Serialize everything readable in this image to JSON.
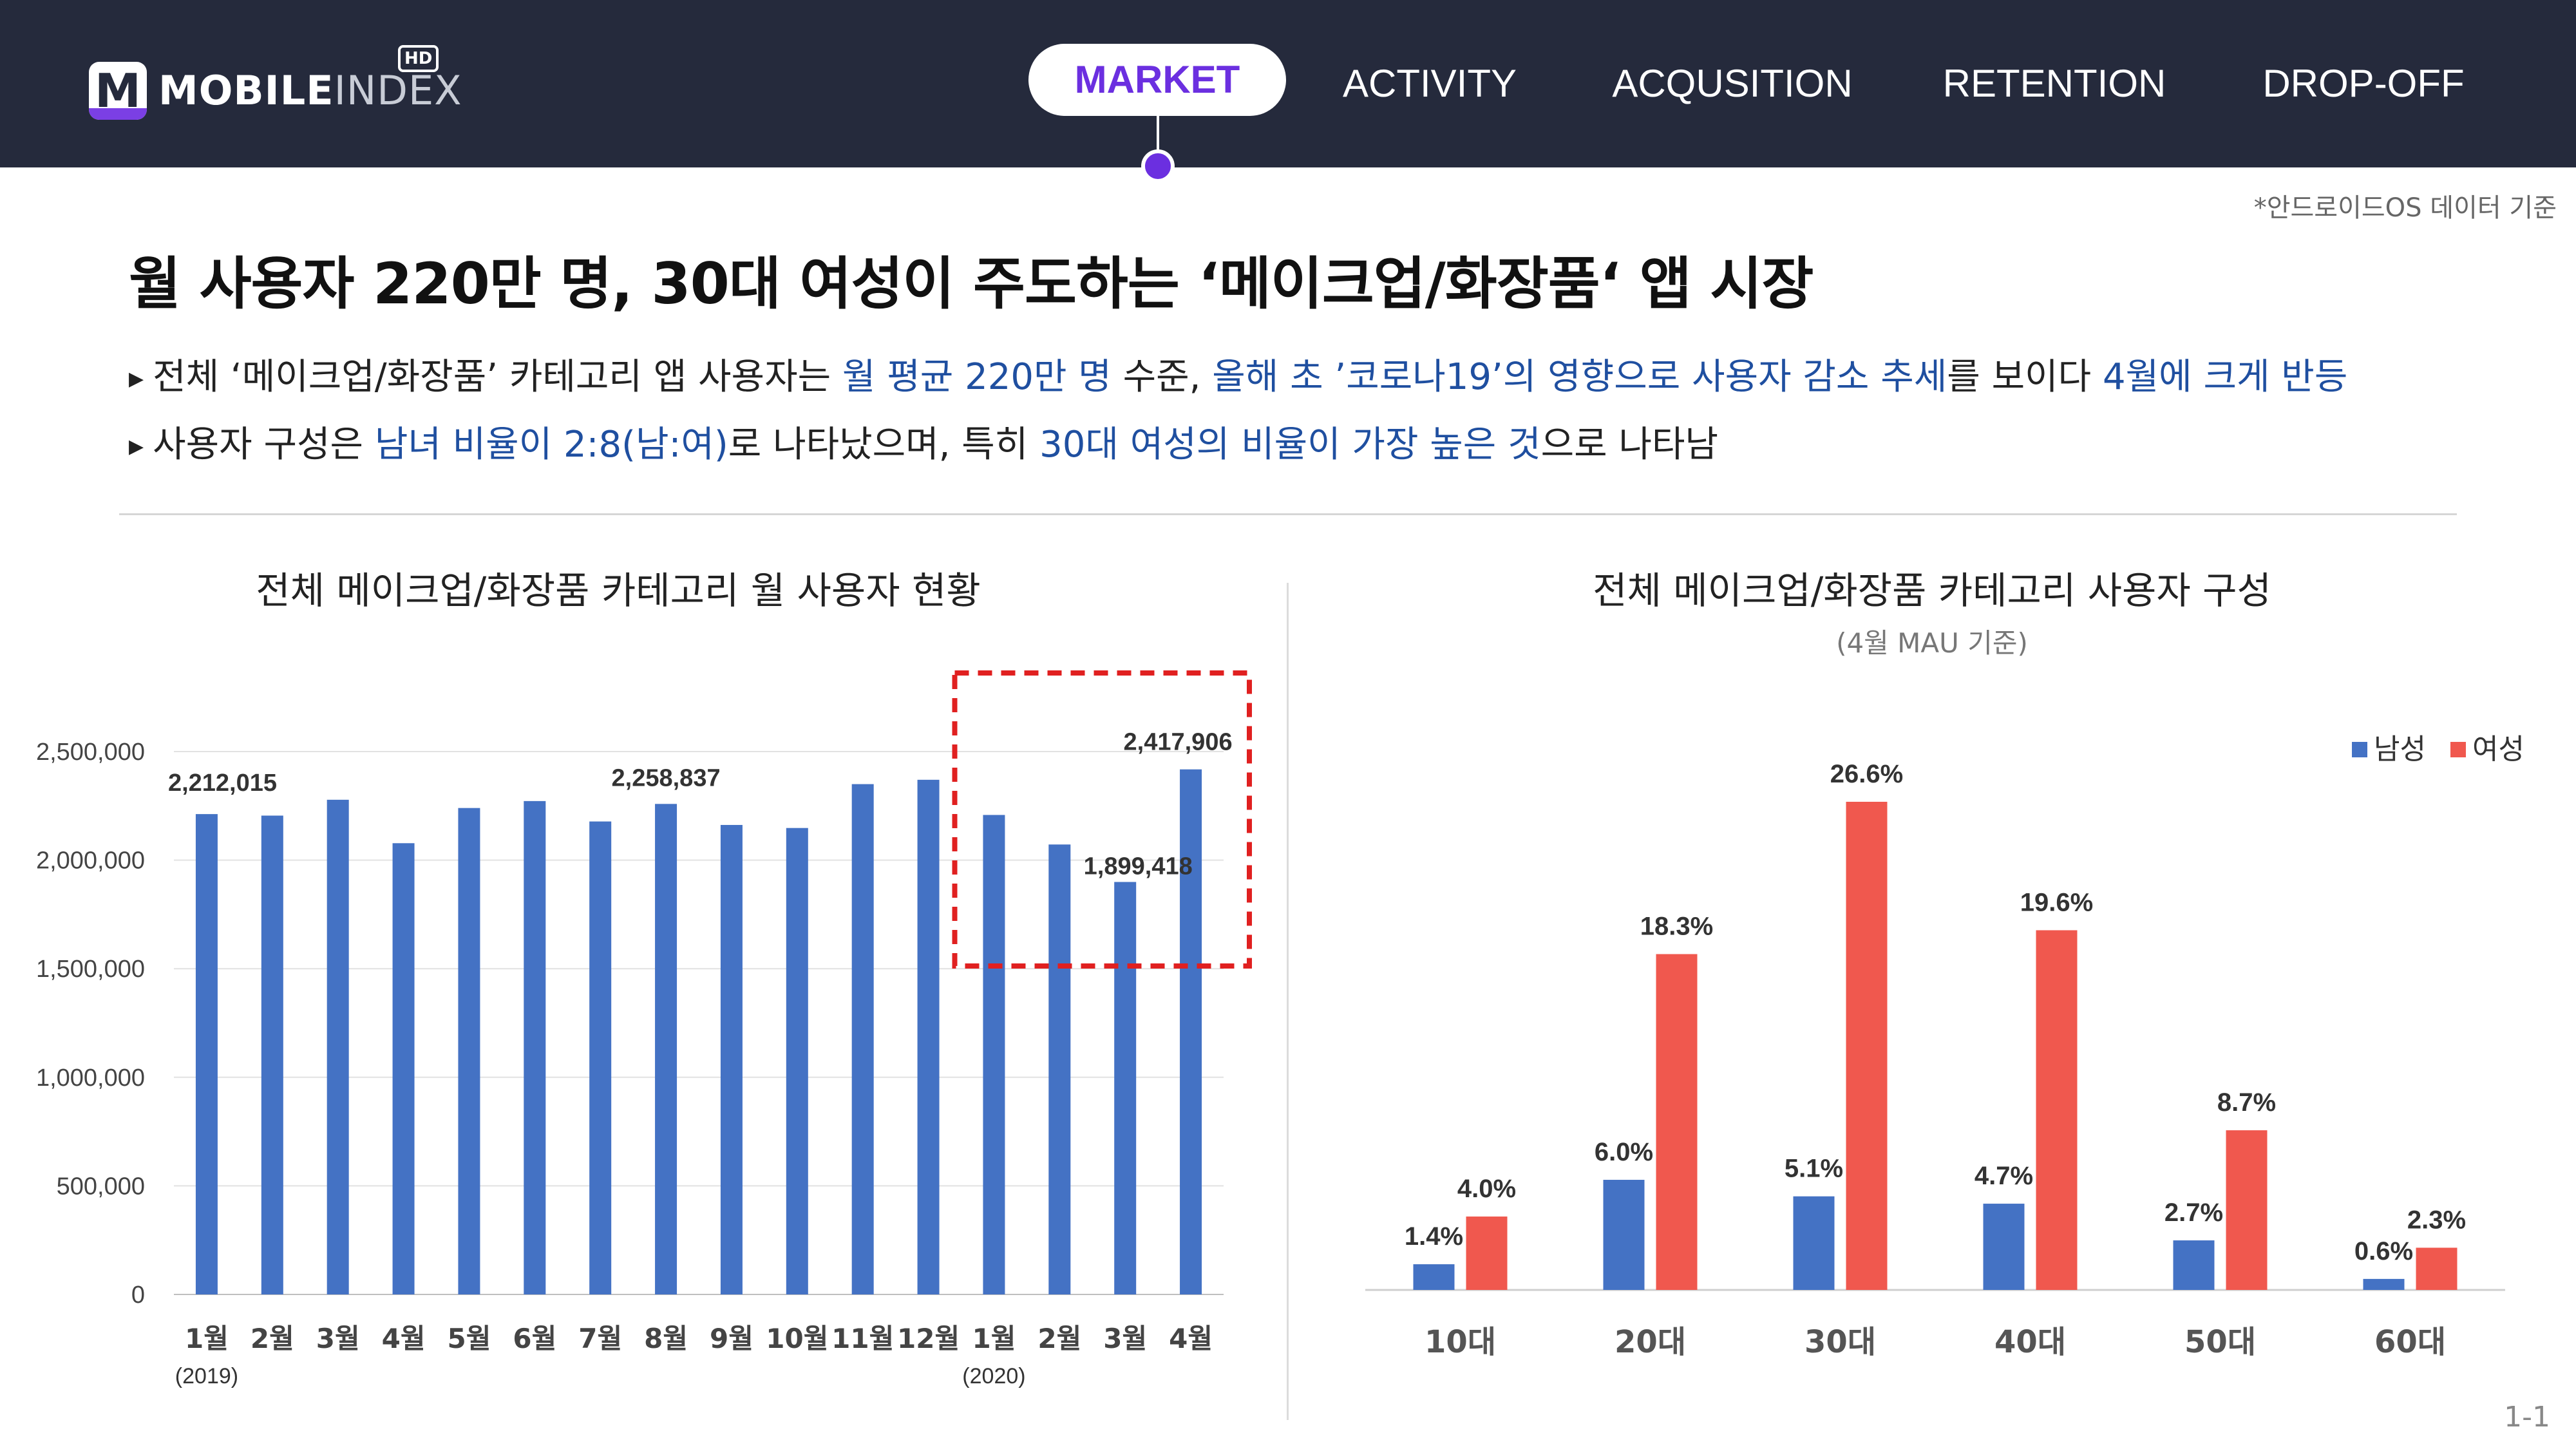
{
  "header": {
    "logo_text_a": "MOBILE",
    "logo_text_b": "INDEX",
    "logo_badge": "HD",
    "logo_mark": "M",
    "nav": [
      "MARKET",
      "ACTIVITY",
      "ACQUSITION",
      "RETENTION",
      "DROP-OFF"
    ],
    "active_nav": "MARKET",
    "accent": "#6b2fe0",
    "bg": "#252a3c"
  },
  "note": "*안드로이드OS 데이터 기준",
  "headline": "월 사용자 220만 명, 30대 여성이 주도하는 ‘메이크업/화장품‘ 앱 시장",
  "bullets": {
    "b1": {
      "p1": "전체 ‘메이크업/화장품’ 카테고리 앱 사용자는 ",
      "h1": "월 평균 220만 명",
      "p2": " 수준, ",
      "h2": "올해 초 ’코로나19’의 영향으로 사용자 감소 추세",
      "p3": "를 보이다 ",
      "h3": "4월에 크게 반등"
    },
    "b2": {
      "p1": "사용자 구성은 ",
      "h1": "남녀 비율이 2:8(남:여)",
      "p2": "로 나타났으며, 특히 ",
      "h2": "30대 여성의 비율이 가장 높은 것",
      "p3": "으로 나타남"
    }
  },
  "page_number": "1-1",
  "chart_data": [
    {
      "type": "bar",
      "title": "전체 메이크업/화장품 카테고리 월 사용자 현황",
      "categories": [
        "1월",
        "2월",
        "3월",
        "4월",
        "5월",
        "6월",
        "7월",
        "8월",
        "9월",
        "10월",
        "11월",
        "12월",
        "1월",
        "2월",
        "3월",
        "4월"
      ],
      "year_labels": [
        {
          "index": 0,
          "text": "(2019)"
        },
        {
          "index": 12,
          "text": "(2020)"
        }
      ],
      "values": [
        2212015,
        2205000,
        2278000,
        2078000,
        2240000,
        2272000,
        2178000,
        2258837,
        2162000,
        2148000,
        2350000,
        2370000,
        2208000,
        2072000,
        1899418,
        2417906
      ],
      "data_labels": [
        {
          "index": 0,
          "text": "2,212,015"
        },
        {
          "index": 7,
          "text": "2,258,837"
        },
        {
          "index": 14,
          "text": "1,899,418"
        },
        {
          "index": 15,
          "text": "2,417,906"
        }
      ],
      "yticks": [
        0,
        500000,
        1000000,
        1500000,
        2000000,
        2500000
      ],
      "ytick_labels": [
        "0",
        "500,000",
        "1,000,000",
        "1,500,000",
        "2,000,000",
        "2,500,000"
      ],
      "ylim": [
        0,
        2500000
      ],
      "highlight": {
        "from_index": 12,
        "to_index": 15,
        "color": "#e02020"
      },
      "color": "#4472c4",
      "grid": true
    },
    {
      "type": "bar",
      "title": "전체 메이크업/화장품 카테고리 사용자 구성",
      "subtitle": "(4월 MAU 기준)",
      "categories": [
        "10대",
        "20대",
        "30대",
        "40대",
        "50대",
        "60대"
      ],
      "series": [
        {
          "name": "남성",
          "color": "#4472c4",
          "values": [
            1.4,
            6.0,
            5.1,
            4.7,
            2.7,
            0.6
          ],
          "labels": [
            "1.4%",
            "6.0%",
            "5.1%",
            "4.7%",
            "2.7%",
            "0.6%"
          ]
        },
        {
          "name": "여성",
          "color": "#f0584e",
          "values": [
            4.0,
            18.3,
            26.6,
            19.6,
            8.7,
            2.3
          ],
          "labels": [
            "4.0%",
            "18.3%",
            "26.6%",
            "19.6%",
            "8.7%",
            "2.3%"
          ]
        }
      ],
      "ylim": [
        0,
        30
      ],
      "legend": "top-right",
      "grid": false
    }
  ]
}
